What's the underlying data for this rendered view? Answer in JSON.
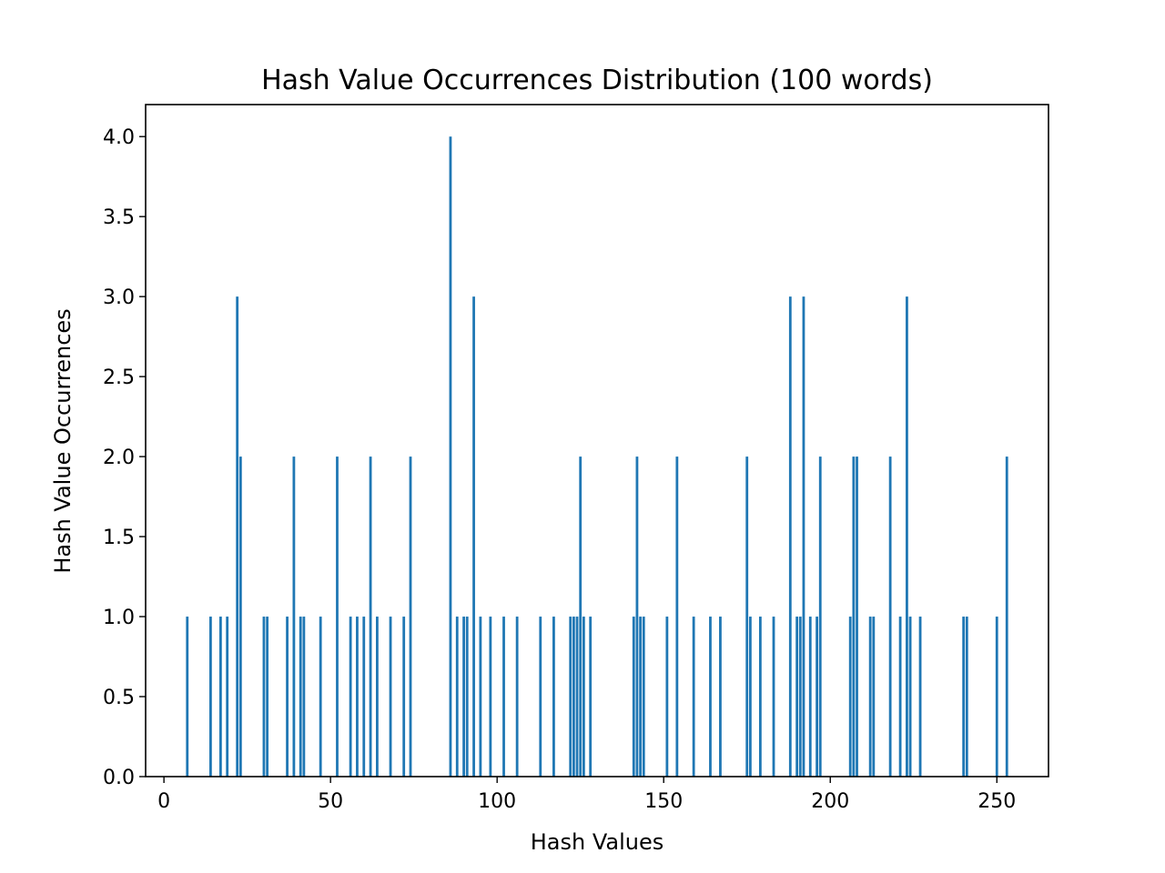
{
  "chart_data": {
    "type": "bar",
    "title": "Hash Value Occurrences Distribution (100 words)",
    "xlabel": "Hash Values",
    "ylabel": "Hash Value Occurrences",
    "xlim": [
      -5.5,
      265.5
    ],
    "ylim": [
      0,
      4.2
    ],
    "xticks": [
      0,
      50,
      100,
      150,
      200,
      250
    ],
    "yticks": [
      0.0,
      0.5,
      1.0,
      1.5,
      2.0,
      2.5,
      3.0,
      3.5,
      4.0
    ],
    "grid": false,
    "bar_color": "#1f77b4",
    "bars": [
      {
        "x": 7,
        "value": 1
      },
      {
        "x": 14,
        "value": 1
      },
      {
        "x": 17,
        "value": 1
      },
      {
        "x": 19,
        "value": 1
      },
      {
        "x": 22,
        "value": 3
      },
      {
        "x": 23,
        "value": 2
      },
      {
        "x": 30,
        "value": 1
      },
      {
        "x": 31,
        "value": 1
      },
      {
        "x": 37,
        "value": 1
      },
      {
        "x": 39,
        "value": 2
      },
      {
        "x": 41,
        "value": 1
      },
      {
        "x": 42,
        "value": 1
      },
      {
        "x": 47,
        "value": 1
      },
      {
        "x": 52,
        "value": 2
      },
      {
        "x": 56,
        "value": 1
      },
      {
        "x": 58,
        "value": 1
      },
      {
        "x": 60,
        "value": 1
      },
      {
        "x": 62,
        "value": 2
      },
      {
        "x": 64,
        "value": 1
      },
      {
        "x": 68,
        "value": 1
      },
      {
        "x": 72,
        "value": 1
      },
      {
        "x": 74,
        "value": 2
      },
      {
        "x": 86,
        "value": 4
      },
      {
        "x": 88,
        "value": 1
      },
      {
        "x": 90,
        "value": 1
      },
      {
        "x": 91,
        "value": 1
      },
      {
        "x": 93,
        "value": 3
      },
      {
        "x": 95,
        "value": 1
      },
      {
        "x": 98,
        "value": 1
      },
      {
        "x": 102,
        "value": 1
      },
      {
        "x": 106,
        "value": 1
      },
      {
        "x": 113,
        "value": 1
      },
      {
        "x": 117,
        "value": 1
      },
      {
        "x": 122,
        "value": 1
      },
      {
        "x": 123,
        "value": 1
      },
      {
        "x": 124,
        "value": 1
      },
      {
        "x": 125,
        "value": 2
      },
      {
        "x": 126,
        "value": 1
      },
      {
        "x": 128,
        "value": 1
      },
      {
        "x": 141,
        "value": 1
      },
      {
        "x": 142,
        "value": 2
      },
      {
        "x": 143,
        "value": 1
      },
      {
        "x": 144,
        "value": 1
      },
      {
        "x": 151,
        "value": 1
      },
      {
        "x": 154,
        "value": 2
      },
      {
        "x": 159,
        "value": 1
      },
      {
        "x": 164,
        "value": 1
      },
      {
        "x": 167,
        "value": 1
      },
      {
        "x": 175,
        "value": 2
      },
      {
        "x": 176,
        "value": 1
      },
      {
        "x": 179,
        "value": 1
      },
      {
        "x": 183,
        "value": 1
      },
      {
        "x": 188,
        "value": 3
      },
      {
        "x": 190,
        "value": 1
      },
      {
        "x": 191,
        "value": 1
      },
      {
        "x": 192,
        "value": 3
      },
      {
        "x": 194,
        "value": 1
      },
      {
        "x": 196,
        "value": 1
      },
      {
        "x": 197,
        "value": 2
      },
      {
        "x": 206,
        "value": 1
      },
      {
        "x": 207,
        "value": 2
      },
      {
        "x": 208,
        "value": 2
      },
      {
        "x": 212,
        "value": 1
      },
      {
        "x": 213,
        "value": 1
      },
      {
        "x": 218,
        "value": 2
      },
      {
        "x": 221,
        "value": 1
      },
      {
        "x": 223,
        "value": 3
      },
      {
        "x": 224,
        "value": 1
      },
      {
        "x": 227,
        "value": 1
      },
      {
        "x": 240,
        "value": 1
      },
      {
        "x": 241,
        "value": 1
      },
      {
        "x": 250,
        "value": 1
      },
      {
        "x": 253,
        "value": 2
      }
    ]
  }
}
